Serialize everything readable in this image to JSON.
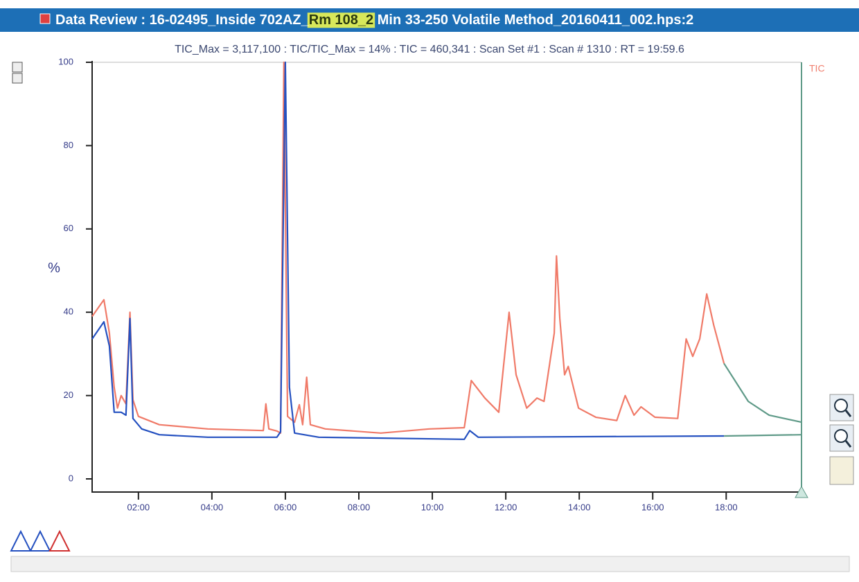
{
  "window": {
    "title_before": "Data Review : 16-02495_Inside 702AZ_",
    "title_highlight": "Rm 108_2",
    "title_after": " Min 33-250 Volatile Method_20160411_002.hps:2"
  },
  "chart_data": {
    "type": "line",
    "title": "TIC_Max = 3,117,100 : TIC/TIC_Max = 14% : TIC = 460,341 : Scan Set #1 : Scan #  1310 : RT = 19:59.6",
    "ylabel": "%",
    "xlim": [
      0.74,
      20.05
    ],
    "ylim": [
      0,
      100
    ],
    "yticks": [
      0,
      20,
      40,
      60,
      80,
      100
    ],
    "xticks": [
      {
        "value": 2,
        "label": "02:00"
      },
      {
        "value": 4,
        "label": "04:00"
      },
      {
        "value": 6,
        "label": "06:00"
      },
      {
        "value": 8,
        "label": "08:00"
      },
      {
        "value": 10,
        "label": "10:00"
      },
      {
        "value": 12,
        "label": "12:00"
      },
      {
        "value": 14,
        "label": "14:00"
      },
      {
        "value": 16,
        "label": "16:00"
      },
      {
        "value": 18,
        "label": "18:00"
      }
    ],
    "legend": "TIC",
    "series": [
      {
        "color": "#f07a68",
        "x": [
          0.74,
          1.06,
          1.21,
          1.34,
          1.43,
          1.53,
          1.66,
          1.77,
          1.85,
          2.0,
          2.57,
          3.89,
          5.4,
          5.47,
          5.55,
          5.77,
          5.87,
          5.96,
          6.06,
          6.25,
          6.38,
          6.47,
          6.58,
          6.68,
          7.09,
          8.6,
          9.92,
          10.87,
          11.06,
          11.43,
          11.81,
          12.09,
          12.28,
          12.57,
          12.85,
          13.04,
          13.32,
          13.38,
          13.47,
          13.6,
          13.7,
          13.98,
          14.45,
          15.02,
          15.25,
          15.49,
          15.68,
          16.06,
          16.68,
          16.91,
          17.09,
          17.28,
          17.47,
          17.66,
          17.94
        ],
        "values": [
          39,
          43,
          35,
          22,
          17,
          20,
          18,
          40,
          19,
          15,
          13,
          12,
          11.6,
          18,
          12,
          11.5,
          11,
          100,
          15,
          13.6,
          17.8,
          13,
          24.4,
          13,
          12,
          11,
          12,
          12.3,
          23.6,
          19.4,
          16,
          40,
          25,
          17,
          19.4,
          18.6,
          35,
          53.5,
          38.5,
          25,
          27,
          17,
          14.8,
          14,
          20,
          15.3,
          17.3,
          14.8,
          14.5,
          33.6,
          29.4,
          33.6,
          44.4,
          36.9,
          27.7
        ]
      },
      {
        "color": "#2450c0",
        "x": [
          0.74,
          1.06,
          1.21,
          1.34,
          1.53,
          1.66,
          1.77,
          1.85,
          2.09,
          2.57,
          3.89,
          5.77,
          5.87,
          6.0,
          6.11,
          6.25,
          6.91,
          10.87,
          11.02,
          11.25,
          17.94
        ],
        "values": [
          33.6,
          37.7,
          31.9,
          16,
          16,
          15.3,
          38.5,
          14.5,
          12,
          10.6,
          10,
          10,
          11.3,
          100,
          22,
          11,
          10,
          9.5,
          11.6,
          10,
          10.3
        ]
      },
      {
        "color": "#5f9a88",
        "x": [
          17.94,
          18.6,
          19.17,
          20.05
        ],
        "values": [
          27.7,
          18.6,
          15.3,
          13.6
        ]
      },
      {
        "color": "#5f9a88",
        "x": [
          17.94,
          20.05
        ],
        "values": [
          10.3,
          10.6
        ]
      }
    ]
  }
}
